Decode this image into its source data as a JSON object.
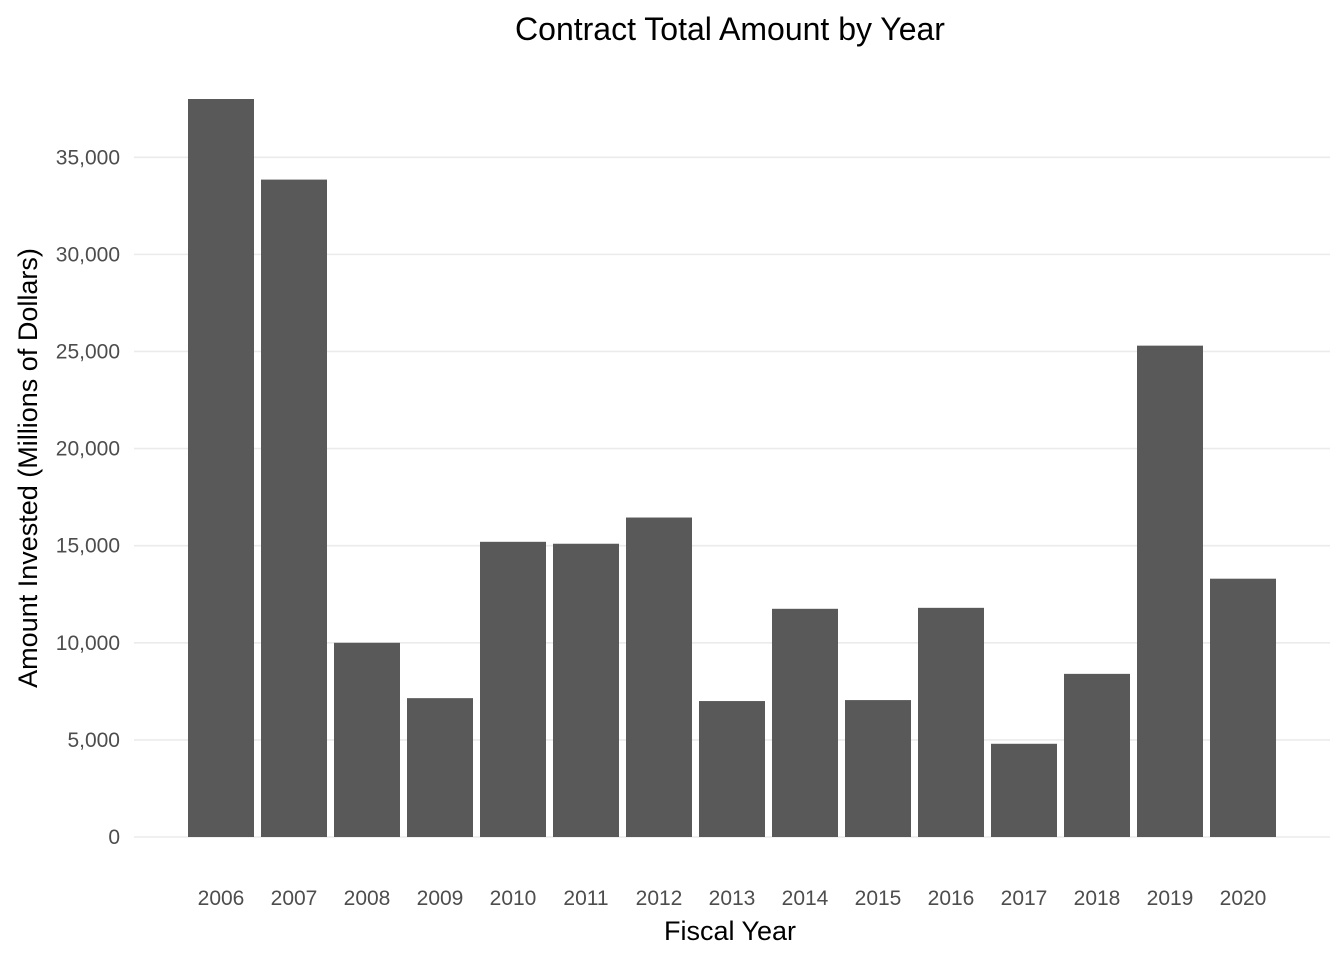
{
  "chart_data": {
    "type": "bar",
    "title": "Contract Total Amount by Year",
    "xlabel": "Fiscal Year",
    "ylabel": "Amount Invested (Millions of Dollars)",
    "categories": [
      "2006",
      "2007",
      "2008",
      "2009",
      "2010",
      "2011",
      "2012",
      "2013",
      "2014",
      "2015",
      "2016",
      "2017",
      "2018",
      "2019",
      "2020"
    ],
    "values": [
      38000,
      33850,
      10000,
      7150,
      15200,
      15100,
      16450,
      7000,
      11750,
      7050,
      11800,
      4800,
      8400,
      25300,
      13300
    ],
    "yticks": [
      0,
      5000,
      10000,
      15000,
      20000,
      25000,
      30000,
      35000
    ],
    "ytick_labels": [
      "0",
      "5,000",
      "10,000",
      "15,000",
      "20,000",
      "25,000",
      "30,000",
      "35,000"
    ],
    "ylim": [
      0,
      38000
    ],
    "grid": "horizontal",
    "legend": "none",
    "colors": {
      "bar": "#595959",
      "grid": "#ebebeb",
      "tick_text": "#4d4d4d",
      "text": "#000000",
      "background": "#ffffff"
    }
  }
}
